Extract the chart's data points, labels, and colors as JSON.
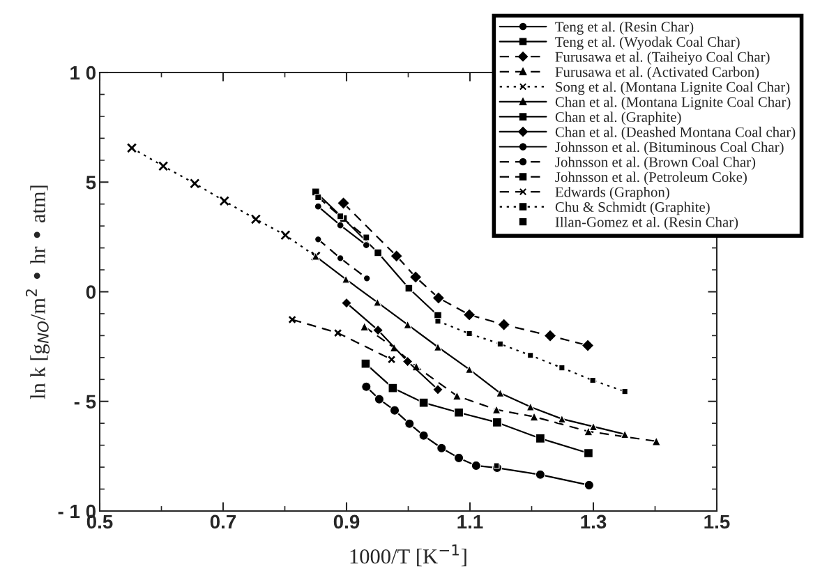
{
  "chart_data": {
    "type": "line",
    "xlabel": "1000/T [K$^{−1}$]",
    "ylabel": "ln k [g$_{NO}$/m$^{2}$ • hr • atm]",
    "xlim": [
      0.5,
      1.5
    ],
    "ylim": [
      -10,
      10
    ],
    "xticks": [
      0.5,
      0.7,
      0.9,
      1.1,
      1.3,
      1.5
    ],
    "yticks": [
      {
        "value": -10,
        "label": "- 1 0"
      },
      {
        "value": -5,
        "label": "- 5"
      },
      0,
      5,
      {
        "value": 10,
        "label": "1 0"
      }
    ],
    "grid": false,
    "legend": "top right",
    "series": [
      {
        "name": "Teng et al. (Resin Char)",
        "color": "#000000",
        "marker": "circle",
        "line_style": "solid",
        "x": [
          0.932,
          0.953,
          0.978,
          1.002,
          1.025,
          1.054,
          1.082,
          1.11,
          1.144,
          1.214,
          1.293
        ],
        "values": [
          -4.33,
          -4.9,
          -5.41,
          -6.02,
          -6.56,
          -7.13,
          -7.58,
          -7.93,
          -8.03,
          -8.34,
          -8.82
        ]
      },
      {
        "name": "Teng et al. (Wyodak Coal Char)",
        "color": "#000000",
        "marker": "square",
        "line_style": "solid",
        "x": [
          0.931,
          0.975,
          1.025,
          1.082,
          1.144,
          1.214,
          1.292
        ],
        "values": [
          -3.28,
          -4.39,
          -5.06,
          -5.51,
          -5.96,
          -6.69,
          -7.36
        ]
      },
      {
        "name": "Furusawa et al. (Taiheiyo Coal Char)",
        "color": "#000000",
        "marker": "diamond",
        "line_style": "dashed",
        "x": [
          0.895,
          0.981,
          1.012,
          1.049,
          1.099,
          1.155,
          1.23,
          1.291
        ],
        "values": [
          4.04,
          1.63,
          0.67,
          -0.28,
          -1.05,
          -1.5,
          -2.01,
          -2.45
        ]
      },
      {
        "name": "Furusawa et al. (Activated Carbon)",
        "color": "#000000",
        "marker": "triangle",
        "line_style": "dashed",
        "x": [
          0.929,
          0.977,
          1.013,
          1.079,
          1.143,
          1.204,
          1.292,
          1.402
        ],
        "values": [
          -1.59,
          -2.55,
          -3.41,
          -4.75,
          -5.38,
          -5.7,
          -6.37,
          -6.82
        ]
      },
      {
        "name": "Song et al. (Montana Lignite Coal Char)",
        "color": "#000000",
        "marker": "cross",
        "line_style": "dotted",
        "x": [
          0.552,
          0.603,
          0.654,
          0.702,
          0.753,
          0.801,
          0.85
        ],
        "values": [
          6.56,
          5.73,
          4.94,
          4.14,
          3.31,
          2.58,
          1.62
        ]
      },
      {
        "name": "Chan et al. (Montana Lignite Coal Char)",
        "color": "#000000",
        "marker": "triangle",
        "line_style": "solid",
        "x": [
          0.85,
          0.899,
          0.95,
          0.999,
          1.048,
          1.099,
          1.149,
          1.198,
          1.249,
          1.3,
          1.351
        ],
        "values": [
          1.62,
          0.57,
          -0.48,
          -1.5,
          -2.52,
          -3.54,
          -4.62,
          -5.25,
          -5.8,
          -6.15,
          -6.5
        ]
      },
      {
        "name": "Chan et al. (Graphite)",
        "color": "#000000",
        "marker": "square",
        "line_style": "solid",
        "x": [
          0.85,
          0.895,
          0.951,
          1.001,
          1.048
        ],
        "values": [
          4.55,
          3.34,
          1.78,
          0.16,
          -1.08
        ]
      },
      {
        "name": "Chan et al. (Deashed Montana Coal char)",
        "color": "#000000",
        "marker": "diamond",
        "line_style": "solid",
        "x": [
          0.9,
          0.951,
          0.999,
          1.048
        ],
        "values": [
          -0.51,
          -1.75,
          -3.18,
          -4.46
        ]
      },
      {
        "name": "Johnsson et al. (Bituminous Coal Char)",
        "color": "#000000",
        "marker": "circle",
        "line_style": "solid",
        "x": [
          0.854,
          0.89,
          0.932
        ],
        "values": [
          3.89,
          3.03,
          2.13
        ]
      },
      {
        "name": "Johnsson et al. (Brown Coal Char)",
        "color": "#000000",
        "marker": "circle",
        "line_style": "dashed",
        "x": [
          0.854,
          0.89,
          0.933
        ],
        "values": [
          2.39,
          1.53,
          0.61
        ]
      },
      {
        "name": "Johnsson et al. (Petroleum Coke)",
        "color": "#000000",
        "marker": "square",
        "line_style": "dashed",
        "x": [
          0.854,
          0.89,
          0.932
        ],
        "values": [
          4.31,
          3.44,
          2.48
        ]
      },
      {
        "name": "Edwards (Graphon)",
        "color": "#000000",
        "marker": "cross",
        "line_style": "dashed",
        "x": [
          0.812,
          0.886,
          0.973
        ],
        "values": [
          -1.27,
          -1.88,
          -3.09
        ]
      },
      {
        "name": "Chu & Schmidt (Graphite)",
        "color": "#000000",
        "marker": "square",
        "line_style": "dotted",
        "x": [
          1.048,
          1.099,
          1.149,
          1.198,
          1.249,
          1.299,
          1.351
        ],
        "values": [
          -1.34,
          -1.91,
          -2.38,
          -2.9,
          -3.47,
          -4.04,
          -4.55
        ]
      },
      {
        "name": "Illan-Gomez et al. (Resin Char)",
        "color": "#000000",
        "marker": "square",
        "line_style": "none",
        "x": [
          1.143
        ],
        "values": [
          -7.93
        ]
      }
    ]
  }
}
